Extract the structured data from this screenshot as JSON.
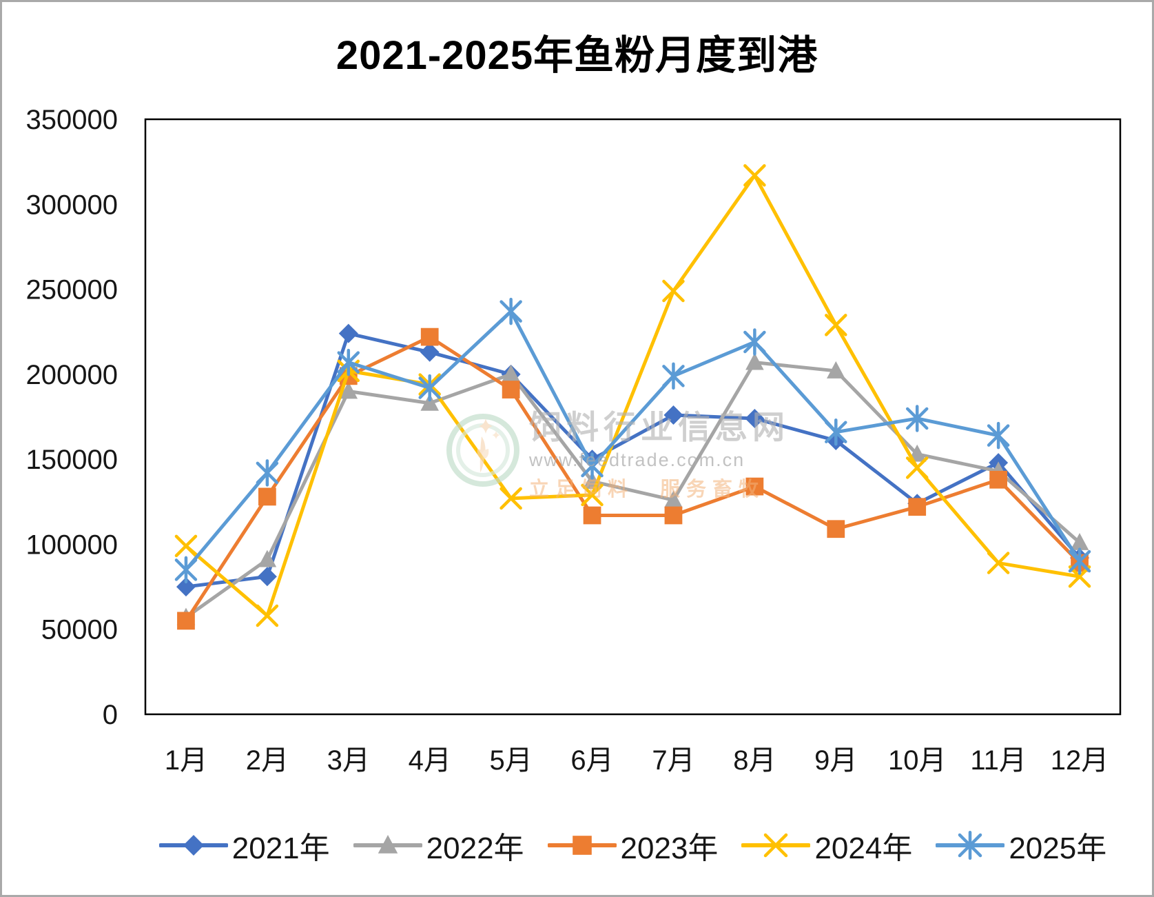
{
  "chart_data": {
    "type": "line",
    "title": "2021-2025年鱼粉月度到港",
    "categories": [
      "1月",
      "2月",
      "3月",
      "4月",
      "5月",
      "6月",
      "7月",
      "8月",
      "9月",
      "10月",
      "11月",
      "12月"
    ],
    "series": [
      {
        "name": "2021年",
        "color": "#4472C4",
        "marker": "diamond",
        "values": [
          75000,
          81000,
          224000,
          213000,
          200000,
          150000,
          176000,
          174000,
          161000,
          124000,
          148000,
          92000
        ]
      },
      {
        "name": "2022年",
        "color": "#A5A5A5",
        "marker": "triangle",
        "values": [
          57000,
          91000,
          190000,
          183000,
          200000,
          137000,
          126000,
          207000,
          202000,
          153000,
          143000,
          101000
        ]
      },
      {
        "name": "2023年",
        "color": "#ED7D31",
        "marker": "square",
        "values": [
          55000,
          128000,
          199000,
          222000,
          191000,
          117000,
          117000,
          134000,
          109000,
          122000,
          138000,
          89000
        ]
      },
      {
        "name": "2024年",
        "color": "#FFC000",
        "marker": "x",
        "values": [
          99000,
          58000,
          202000,
          194000,
          127000,
          129000,
          249000,
          317000,
          229000,
          145000,
          89000,
          81000
        ]
      },
      {
        "name": "2025年",
        "color": "#5B9BD5",
        "marker": "asterisk",
        "values": [
          85000,
          142000,
          207000,
          192000,
          237000,
          146000,
          199000,
          219000,
          166000,
          174000,
          164000,
          90000
        ]
      }
    ],
    "ylim": [
      0,
      350000
    ],
    "yticks": [
      0,
      50000,
      100000,
      150000,
      200000,
      250000,
      300000,
      350000
    ],
    "grid": false,
    "legend_position": "bottom"
  },
  "watermark": {
    "site_name": "饲料行业信息网",
    "site_url": "www.feedtrade.com.cn",
    "slogan": "立足饲料　服务畜牧"
  }
}
